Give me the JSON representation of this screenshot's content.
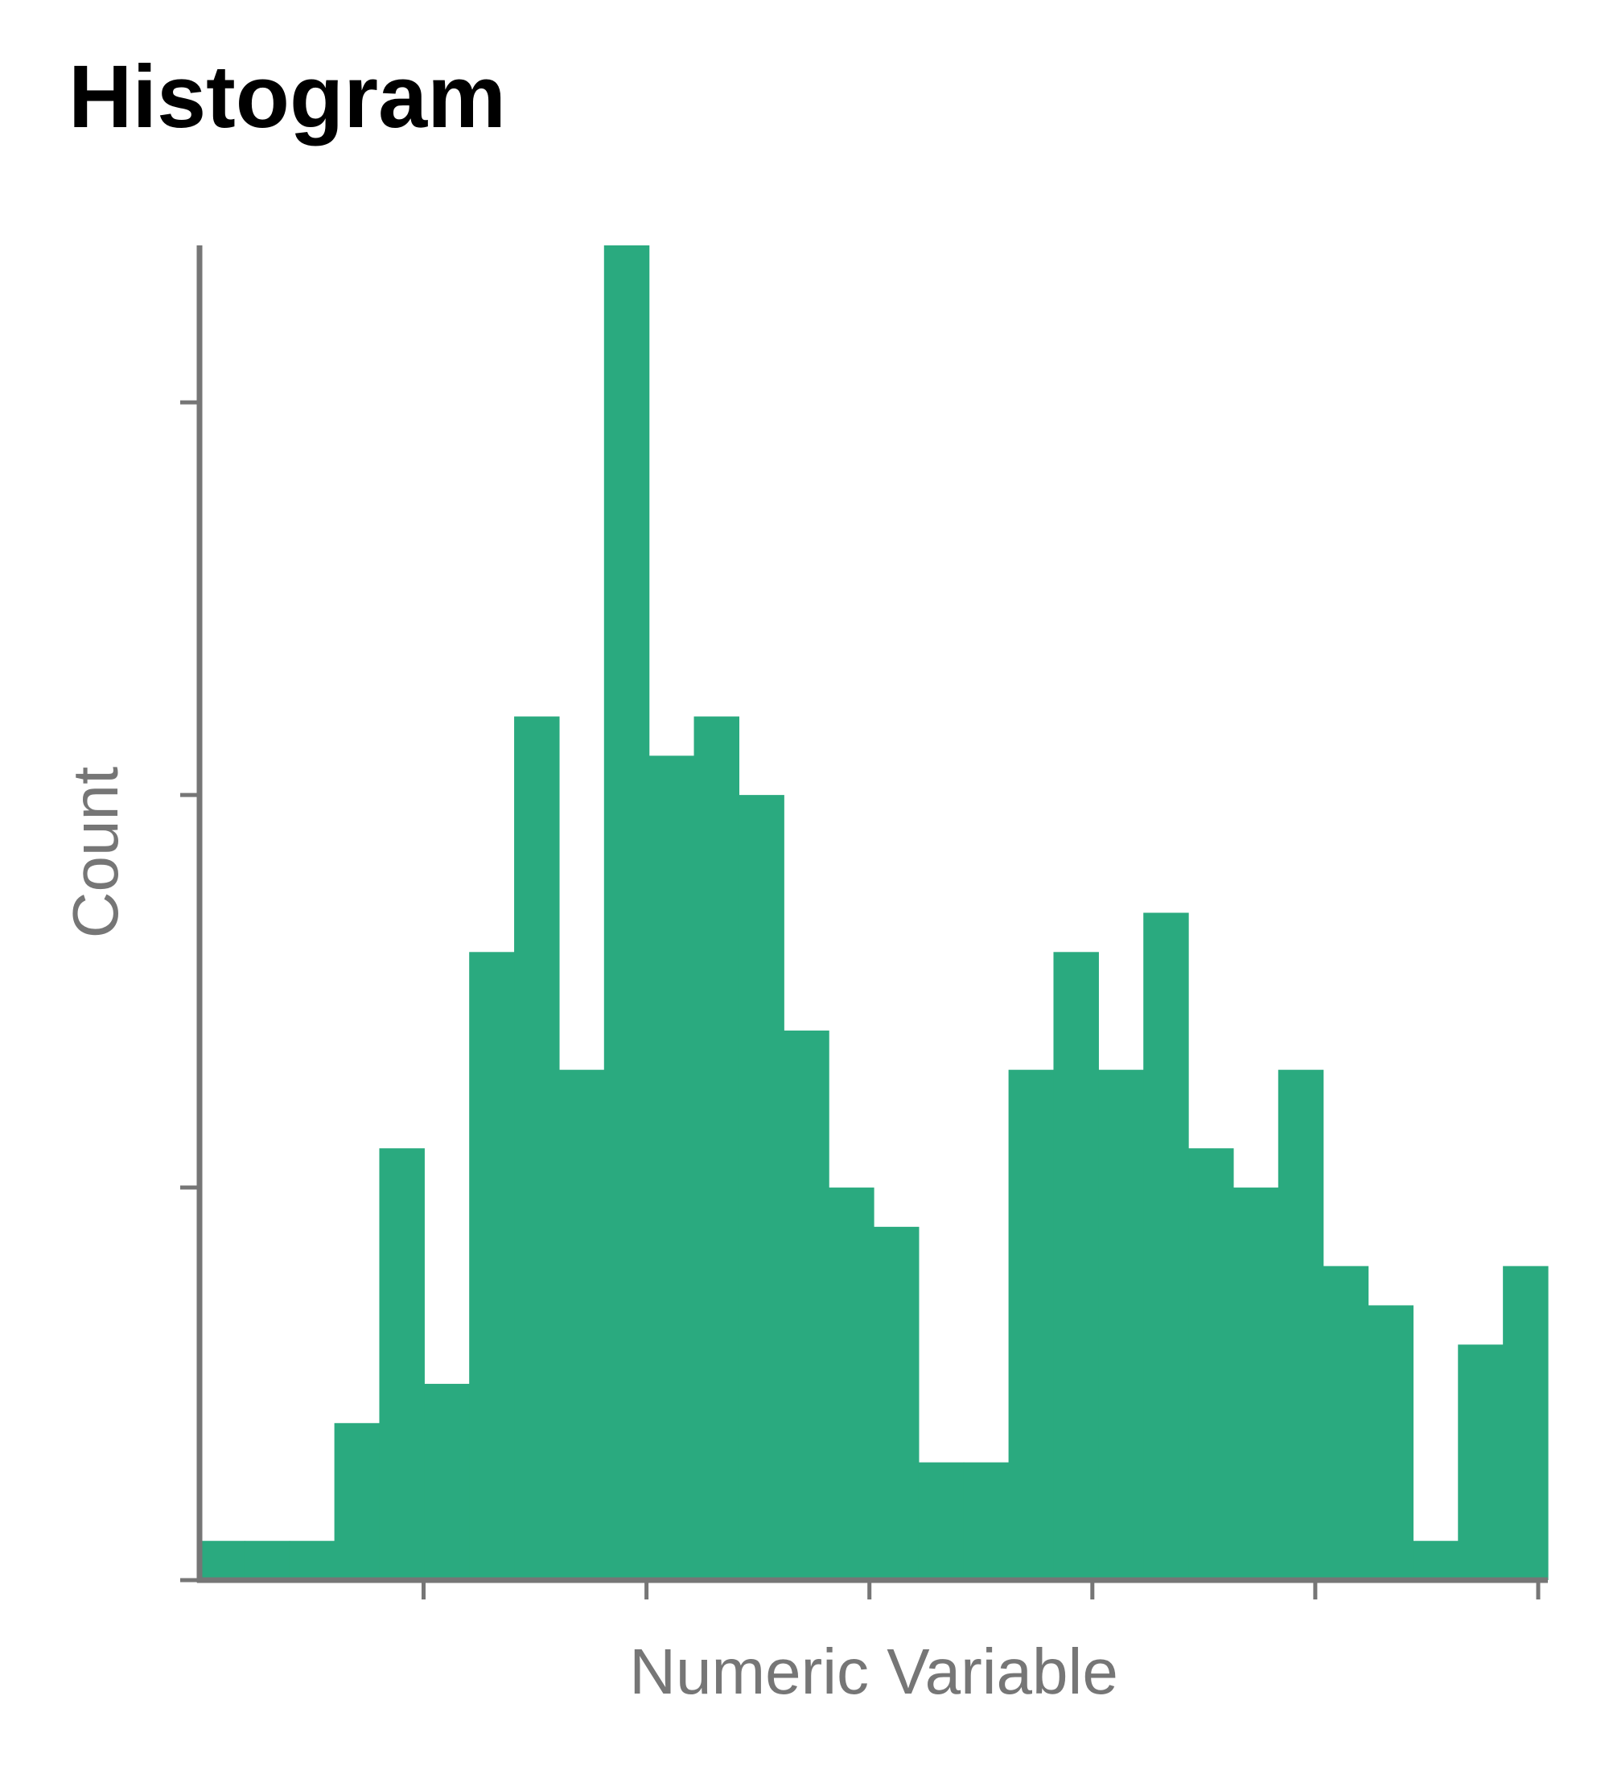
{
  "chart_data": {
    "type": "bar",
    "title": "Histogram",
    "xlabel": "Numeric Variable",
    "ylabel": "Count",
    "bar_color": "#2aaa7f",
    "axis_color": "#767676",
    "title_color": "#000000",
    "bins": 30,
    "y_ticks": [
      0,
      1,
      2,
      3
    ],
    "ylim": [
      0,
      3.4
    ],
    "values": [
      0.1,
      0.1,
      0.1,
      0.4,
      1.1,
      0.5,
      1.6,
      2.2,
      1.3,
      3.4,
      2.1,
      2.2,
      2.0,
      1.4,
      1.0,
      0.9,
      0.3,
      0.3,
      1.3,
      1.6,
      1.3,
      1.7,
      1.1,
      1.0,
      1.3,
      0.8,
      0.7,
      0.1,
      0.6,
      0.8
    ],
    "grid": false,
    "legend": "none"
  }
}
